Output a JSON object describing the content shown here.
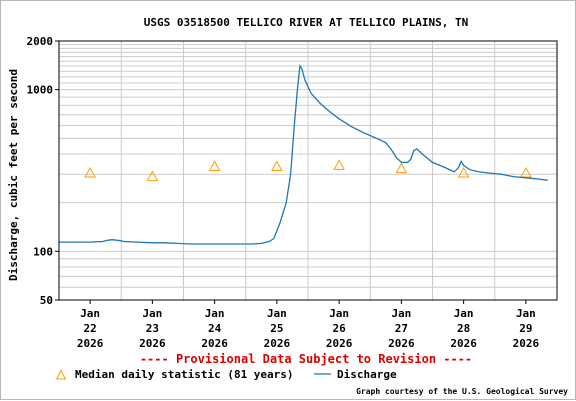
{
  "chart_data": {
    "type": "line",
    "title": "USGS 03518500 TELLICO RIVER AT TELLICO PLAINS, TN",
    "ylabel": "Discharge, cubic feet per second",
    "xlabel": "",
    "y_scale": "log",
    "ylim": [
      50,
      2000
    ],
    "y_ticks": [
      {
        "value": 50,
        "label": "50"
      },
      {
        "value": 100,
        "label": "100"
      },
      {
        "value": 1000,
        "label": "1000"
      },
      {
        "value": 2000,
        "label": "2000"
      }
    ],
    "x_ticks": [
      {
        "day": 22,
        "line1": "Jan",
        "line2": "22",
        "line3": "2026"
      },
      {
        "day": 23,
        "line1": "Jan",
        "line2": "23",
        "line3": "2026"
      },
      {
        "day": 24,
        "line1": "Jan",
        "line2": "24",
        "line3": "2026"
      },
      {
        "day": 25,
        "line1": "Jan",
        "line2": "25",
        "line3": "2026"
      },
      {
        "day": 26,
        "line1": "Jan",
        "line2": "26",
        "line3": "2026"
      },
      {
        "day": 27,
        "line1": "Jan",
        "line2": "27",
        "line3": "2026"
      },
      {
        "day": 28,
        "line1": "Jan",
        "line2": "28",
        "line3": "2026"
      },
      {
        "day": 29,
        "line1": "Jan",
        "line2": "29",
        "line3": "2026"
      }
    ],
    "x_range_days": [
      21.5,
      29.5
    ],
    "grid": true,
    "series": [
      {
        "name": "Discharge",
        "color": "#1f77b4",
        "points": [
          [
            21.5,
            114
          ],
          [
            21.8,
            114
          ],
          [
            22.0,
            114
          ],
          [
            22.2,
            115
          ],
          [
            22.28,
            117
          ],
          [
            22.35,
            118
          ],
          [
            22.45,
            117
          ],
          [
            22.55,
            115
          ],
          [
            22.75,
            114
          ],
          [
            23.0,
            113
          ],
          [
            23.2,
            113
          ],
          [
            23.4,
            112
          ],
          [
            23.6,
            111
          ],
          [
            23.8,
            111
          ],
          [
            24.0,
            111
          ],
          [
            24.2,
            111
          ],
          [
            24.4,
            111
          ],
          [
            24.6,
            111
          ],
          [
            24.75,
            112
          ],
          [
            24.88,
            115
          ],
          [
            24.95,
            120
          ],
          [
            25.05,
            150
          ],
          [
            25.15,
            200
          ],
          [
            25.22,
            300
          ],
          [
            25.28,
            600
          ],
          [
            25.33,
            1000
          ],
          [
            25.37,
            1400
          ],
          [
            25.4,
            1350
          ],
          [
            25.45,
            1150
          ],
          [
            25.55,
            950
          ],
          [
            25.7,
            820
          ],
          [
            25.85,
            730
          ],
          [
            26.0,
            660
          ],
          [
            26.2,
            590
          ],
          [
            26.4,
            540
          ],
          [
            26.6,
            500
          ],
          [
            26.75,
            470
          ],
          [
            26.85,
            420
          ],
          [
            26.92,
            380
          ],
          [
            27.0,
            355
          ],
          [
            27.1,
            355
          ],
          [
            27.15,
            370
          ],
          [
            27.2,
            420
          ],
          [
            27.25,
            430
          ],
          [
            27.35,
            395
          ],
          [
            27.5,
            355
          ],
          [
            27.7,
            330
          ],
          [
            27.85,
            310
          ],
          [
            27.92,
            330
          ],
          [
            27.96,
            360
          ],
          [
            28.0,
            340
          ],
          [
            28.1,
            320
          ],
          [
            28.25,
            310
          ],
          [
            28.4,
            305
          ],
          [
            28.6,
            300
          ],
          [
            28.8,
            290
          ],
          [
            29.0,
            285
          ],
          [
            29.2,
            280
          ],
          [
            29.35,
            275
          ]
        ]
      },
      {
        "name": "Median daily statistic (81 years)",
        "color": "#ff9e00",
        "points": [
          [
            22,
            305
          ],
          [
            23,
            290
          ],
          [
            24,
            335
          ],
          [
            25,
            335
          ],
          [
            26,
            340
          ],
          [
            27,
            325
          ],
          [
            28,
            305
          ],
          [
            29,
            305
          ]
        ]
      }
    ],
    "legend_placement": "bottom-left"
  },
  "footer": {
    "provisional_notice": "---- Provisional Data Subject to Revision ----",
    "legend_median_label": "Median daily statistic (81 years)",
    "legend_discharge_label": "Discharge",
    "credit": "Graph courtesy of the U.S. Geological Survey"
  },
  "colors": {
    "discharge": "#1f77b4",
    "median": "#ff9e00",
    "provisional": "#dd0000",
    "grid": "#cccccc"
  }
}
